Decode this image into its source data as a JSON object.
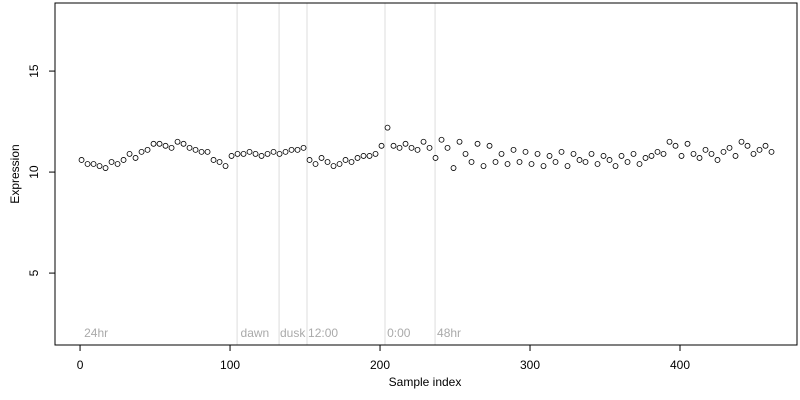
{
  "chart_data": {
    "type": "scatter",
    "xlabel": "Sample index",
    "ylabel": "Expression",
    "xlim": [
      -16.7,
      478
    ],
    "ylim": [
      1.44,
      18.37
    ],
    "xticks": [
      0,
      100,
      200,
      300,
      400
    ],
    "yticks": [
      5,
      10,
      15
    ],
    "color": "#ffffff",
    "edgecolor": "#000000",
    "vlines": [
      104.7,
      132.7,
      151.3,
      203.3,
      236.7
    ],
    "vline_color": "#dddddd",
    "annotations": [
      {
        "text": "24hr",
        "x": 2.7,
        "y": 2.0
      },
      {
        "text": "dawn",
        "x": 107,
        "y": 2.0
      },
      {
        "text": "dusk",
        "x": 133.3,
        "y": 2.0
      },
      {
        "text": "12:00",
        "x": 152,
        "y": 2.0
      },
      {
        "text": "0:00",
        "x": 204.7,
        "y": 2.0
      },
      {
        "text": "48hr",
        "x": 238,
        "y": 2.0
      }
    ],
    "x": [
      1,
      5,
      9,
      13,
      17,
      21,
      25,
      29,
      33,
      37,
      41,
      45,
      49,
      53,
      57,
      61,
      65,
      69,
      73,
      77,
      81,
      85,
      89,
      93,
      97,
      101,
      105,
      109,
      113,
      117,
      121,
      125,
      129,
      133,
      137,
      141,
      145,
      149,
      153,
      157,
      161,
      165,
      169,
      173,
      177,
      181,
      185,
      189,
      193,
      197,
      201,
      205,
      209,
      213,
      217,
      221,
      225,
      229,
      233,
      237,
      241,
      245,
      249,
      253,
      257,
      261,
      265,
      269,
      273,
      277,
      281,
      285,
      289,
      293,
      297,
      301,
      305,
      309,
      313,
      317,
      321,
      325,
      329,
      333,
      337,
      341,
      345,
      349,
      353,
      357,
      361,
      365,
      369,
      373,
      377,
      381,
      385,
      389,
      393,
      397,
      401,
      405,
      409,
      413,
      417,
      421,
      425,
      429,
      433,
      437,
      441,
      445,
      449,
      453,
      457,
      461
    ],
    "values": [
      10.6,
      10.4,
      10.4,
      10.3,
      10.2,
      10.5,
      10.4,
      10.6,
      10.9,
      10.7,
      11.0,
      11.1,
      11.4,
      11.4,
      11.3,
      11.2,
      11.5,
      11.4,
      11.2,
      11.1,
      11.0,
      11.0,
      10.6,
      10.5,
      10.3,
      10.8,
      10.9,
      10.9,
      11.0,
      10.9,
      10.8,
      10.9,
      11.0,
      10.9,
      11.0,
      11.1,
      11.1,
      11.2,
      10.6,
      10.4,
      10.7,
      10.5,
      10.3,
      10.4,
      10.6,
      10.5,
      10.7,
      10.8,
      10.8,
      10.9,
      11.3,
      12.2,
      11.3,
      11.2,
      11.4,
      11.2,
      11.1,
      11.5,
      11.2,
      10.7,
      11.6,
      11.2,
      10.2,
      11.5,
      10.9,
      10.5,
      11.4,
      10.3,
      11.3,
      10.5,
      10.9,
      10.4,
      11.1,
      10.5,
      11.0,
      10.4,
      10.9,
      10.3,
      10.8,
      10.5,
      11.0,
      10.3,
      10.9,
      10.6,
      10.5,
      10.9,
      10.4,
      10.8,
      10.6,
      10.3,
      10.8,
      10.5,
      10.9,
      10.4,
      10.7,
      10.8,
      11.0,
      10.9,
      11.5,
      11.3,
      10.8,
      11.4,
      10.9,
      10.7,
      11.1,
      10.9,
      10.6,
      11.0,
      11.2,
      10.8,
      11.5,
      11.3,
      10.9,
      11.1,
      11.3,
      11.0
    ]
  }
}
